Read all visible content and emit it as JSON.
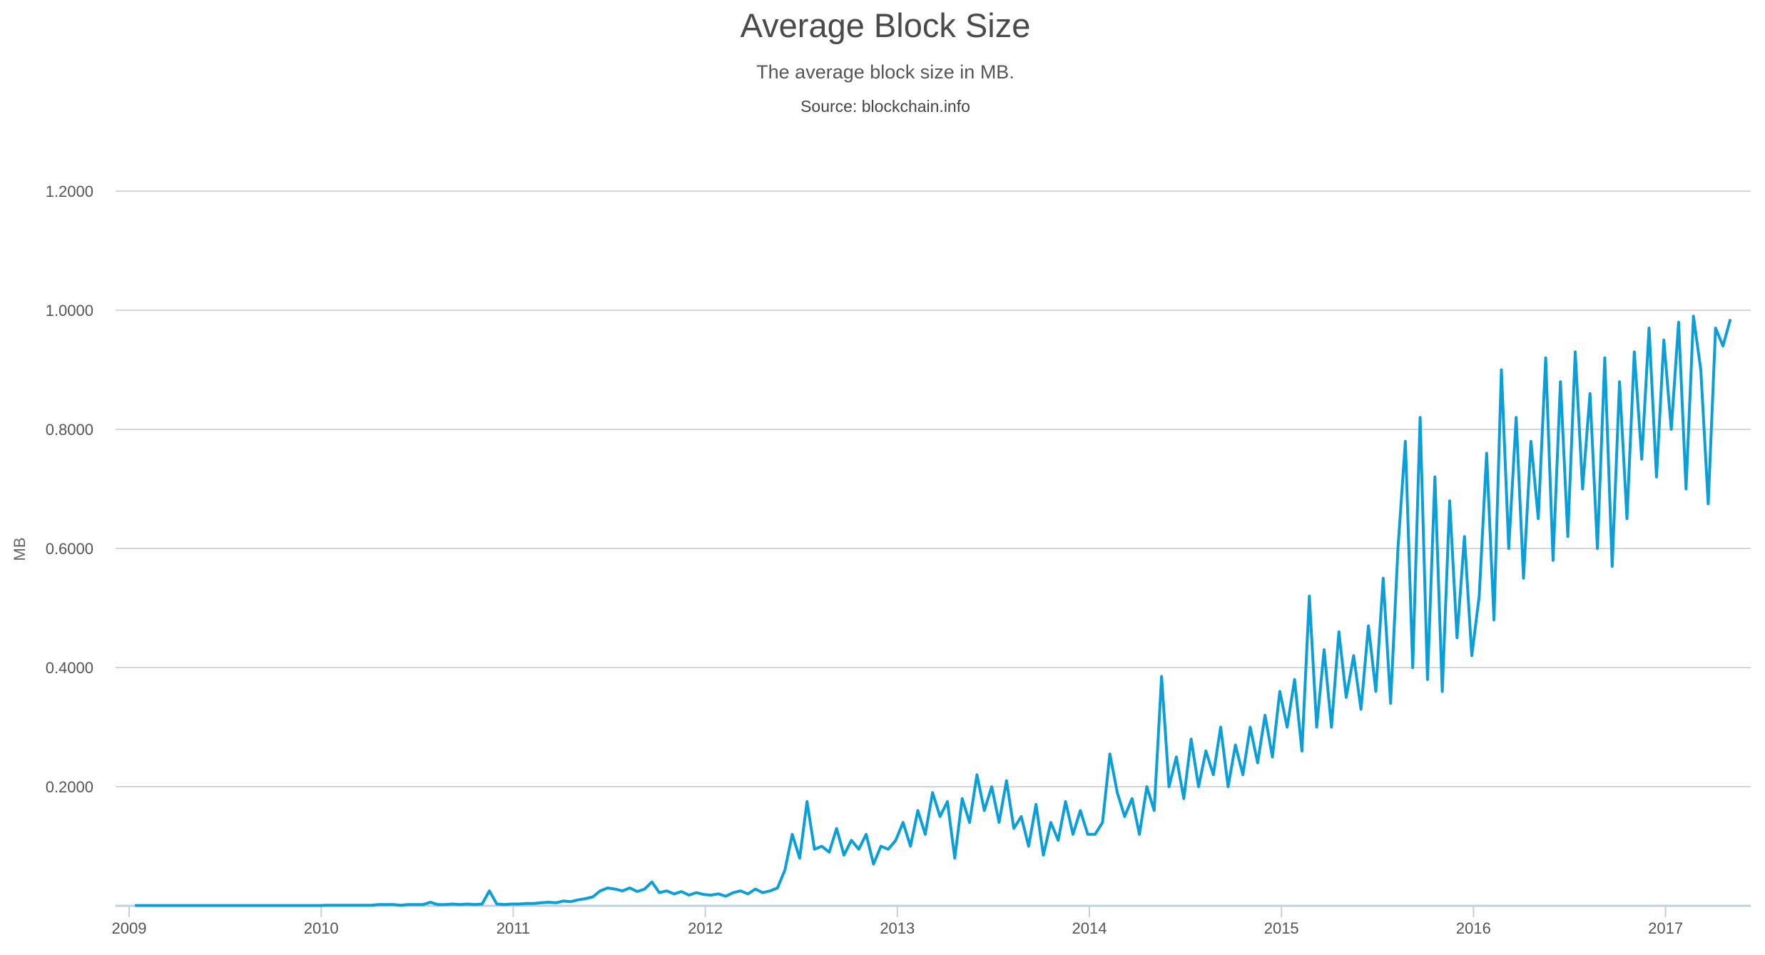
{
  "chart_data": {
    "type": "line",
    "title": "Average Block Size",
    "subtitle": "The average block size in MB.",
    "source": "Source: blockchain.info",
    "xlabel": "",
    "ylabel": "MB",
    "xlim": [
      2009,
      2017.45
    ],
    "ylim": [
      0,
      1.2
    ],
    "y_ticks": [
      "0.2000",
      "0.4000",
      "0.6000",
      "0.8000",
      "1.0000",
      "1.2000"
    ],
    "y_tick_values": [
      0.2,
      0.4,
      0.6,
      0.8,
      1.0,
      1.2
    ],
    "x_ticks": [
      "2009",
      "2010",
      "2011",
      "2012",
      "2013",
      "2014",
      "2015",
      "2016",
      "2017"
    ],
    "grid": true,
    "legend": "none",
    "series": [
      {
        "name": "Average Block Size",
        "color": "#0a9fd8",
        "x_start": 2009.03,
        "x_step_years": 0.03846,
        "values": [
          0.0005,
          0.0005,
          0.0005,
          0.0005,
          0.0005,
          0.0005,
          0.0005,
          0.0005,
          0.0005,
          0.0005,
          0.0005,
          0.0005,
          0.0005,
          0.0005,
          0.0005,
          0.0005,
          0.0005,
          0.0005,
          0.0005,
          0.0005,
          0.0005,
          0.0005,
          0.0005,
          0.0005,
          0.0005,
          0.0005,
          0.001,
          0.001,
          0.001,
          0.001,
          0.001,
          0.001,
          0.001,
          0.002,
          0.002,
          0.002,
          0.001,
          0.002,
          0.002,
          0.002,
          0.006,
          0.002,
          0.002,
          0.003,
          0.002,
          0.003,
          0.002,
          0.003,
          0.025,
          0.003,
          0.002,
          0.003,
          0.003,
          0.004,
          0.004,
          0.005,
          0.006,
          0.005,
          0.008,
          0.007,
          0.01,
          0.012,
          0.015,
          0.025,
          0.03,
          0.028,
          0.025,
          0.03,
          0.024,
          0.028,
          0.04,
          0.022,
          0.025,
          0.02,
          0.024,
          0.018,
          0.022,
          0.019,
          0.018,
          0.02,
          0.016,
          0.022,
          0.025,
          0.02,
          0.028,
          0.022,
          0.025,
          0.03,
          0.06,
          0.12,
          0.08,
          0.175,
          0.095,
          0.1,
          0.09,
          0.13,
          0.085,
          0.11,
          0.095,
          0.12,
          0.07,
          0.1,
          0.095,
          0.11,
          0.14,
          0.1,
          0.16,
          0.12,
          0.19,
          0.15,
          0.175,
          0.08,
          0.18,
          0.14,
          0.22,
          0.16,
          0.2,
          0.14,
          0.21,
          0.13,
          0.15,
          0.1,
          0.17,
          0.085,
          0.14,
          0.11,
          0.175,
          0.12,
          0.16,
          0.12,
          0.12,
          0.14,
          0.255,
          0.19,
          0.15,
          0.18,
          0.12,
          0.2,
          0.16,
          0.385,
          0.2,
          0.25,
          0.18,
          0.28,
          0.2,
          0.26,
          0.22,
          0.3,
          0.2,
          0.27,
          0.22,
          0.3,
          0.24,
          0.32,
          0.25,
          0.36,
          0.3,
          0.38,
          0.26,
          0.52,
          0.3,
          0.43,
          0.3,
          0.46,
          0.35,
          0.42,
          0.33,
          0.47,
          0.36,
          0.55,
          0.34,
          0.6,
          0.78,
          0.4,
          0.82,
          0.38,
          0.72,
          0.36,
          0.68,
          0.45,
          0.62,
          0.42,
          0.52,
          0.76,
          0.48,
          0.9,
          0.6,
          0.82,
          0.55,
          0.78,
          0.65,
          0.92,
          0.58,
          0.88,
          0.62,
          0.93,
          0.7,
          0.86,
          0.6,
          0.92,
          0.57,
          0.88,
          0.65,
          0.93,
          0.75,
          0.97,
          0.72,
          0.95,
          0.8,
          0.98,
          0.7,
          0.99,
          0.9,
          0.675,
          0.97,
          0.94,
          0.985
        ]
      }
    ]
  }
}
